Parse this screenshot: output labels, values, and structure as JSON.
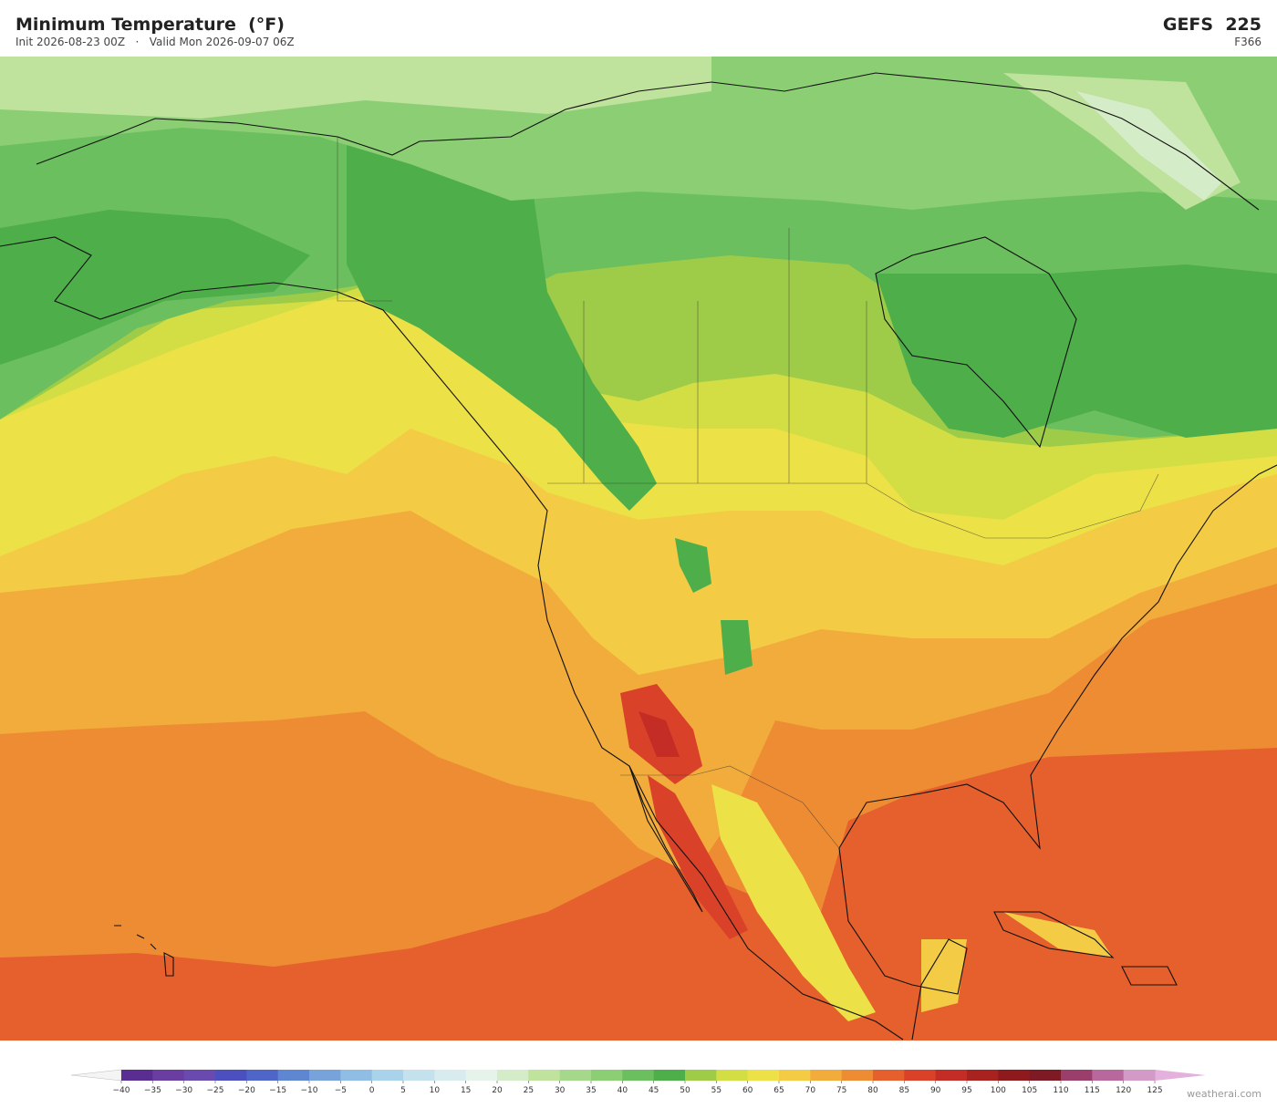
{
  "header": {
    "title": "Minimum Temperature  (°F)",
    "subtitle": "Init 2026-08-23 00Z   ·   Valid Mon 2026-09-07 06Z",
    "model": "GEFS  225",
    "forecast_hour": "F366"
  },
  "colorbar": {
    "ticks": [
      {
        "value": -40,
        "label": "−40"
      },
      {
        "value": -35,
        "label": "−35"
      },
      {
        "value": -30,
        "label": "−30"
      },
      {
        "value": -25,
        "label": "−25"
      },
      {
        "value": -20,
        "label": "−20"
      },
      {
        "value": -15,
        "label": "−15"
      },
      {
        "value": -10,
        "label": "−10"
      },
      {
        "value": -5,
        "label": "−5"
      },
      0,
      5,
      10,
      15,
      20,
      25,
      30,
      35,
      40,
      45,
      50,
      55,
      60,
      65,
      70,
      75,
      80,
      85,
      90,
      95,
      100,
      105,
      110,
      115,
      120,
      125
    ],
    "colors": [
      "#5a2d91",
      "#6a3da0",
      "#6a4aae",
      "#4b4fc0",
      "#4f66c8",
      "#5f86d0",
      "#78a3da",
      "#8fbde3",
      "#a9d3ea",
      "#c3e2ee",
      "#d8ecef",
      "#e6f3ea",
      "#d5ecc9",
      "#bfe29d",
      "#a5d88a",
      "#8cce74",
      "#6cbf5e",
      "#4eae4a",
      "#9fcc48",
      "#d3de45",
      "#ece146",
      "#f4cb44",
      "#f2ac3c",
      "#ee8c34",
      "#e5602d",
      "#d94228",
      "#c42d26",
      "#a8221f",
      "#8e1a1e",
      "#7d1a24",
      "#9a3f6c",
      "#b9689d",
      "#d39ac8"
    ],
    "under_color": "#f4f4f4",
    "over_color": "#e4b0dc"
  },
  "footer": {
    "credit": "weatherai.com"
  }
}
